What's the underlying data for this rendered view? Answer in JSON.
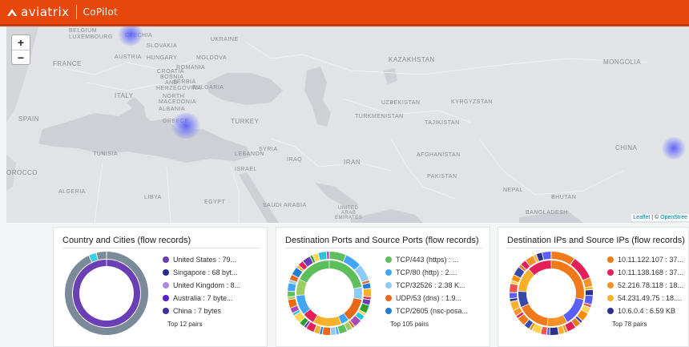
{
  "header": {
    "brand": "aviatrix",
    "product": "CoPilot",
    "logo_icon": "aviatrix-chevron-icon",
    "bg_color": "#e8470c"
  },
  "map": {
    "zoom_in": "+",
    "zoom_out": "−",
    "attribution_leaflet": "Leaflet",
    "attribution_sep": " | © ",
    "attribution_osm": "OpenStree",
    "labels": {
      "luxembourg": "LUXEMBOURG",
      "belgium": "BELGIUM",
      "czechia": "CZECHIA",
      "ukraine": "UKRAINE",
      "slovakia": "SLOVAKIA",
      "austria": "AUSTRIA",
      "hungary": "HUNGARY",
      "moldova": "MOLDOVA",
      "france": "FRANCE",
      "croatia": "CROATIA",
      "bosnia": "BOSNIA",
      "herzegovina": "AND",
      "herzegovina2": "HERZEGOVINA",
      "romania": "ROMANIA",
      "serbia": "SERBIA",
      "bulgaria": "BULGARIA",
      "italy": "ITALY",
      "north_macedonia": "NORTH",
      "north_macedonia2": "MACEDONIA",
      "albania": "ALBANIA",
      "spain": "SPAIN",
      "greece": "GREECE",
      "turkey": "TURKEY",
      "kazakhstan": "KAZAKHSTAN",
      "uzbekistan": "UZBEKISTAN",
      "kyrgyzstan": "KYRGYZSTAN",
      "turkmenistan": "TURKMENISTAN",
      "tajikistan": "TAJIKISTAN",
      "mongolia": "MONGOLIA",
      "tunisia": "TUNISIA",
      "syria": "SYRIA",
      "lebanon": "LEBANON",
      "iraq": "IRAQ",
      "iran": "IRAN",
      "afghanistan": "AFGHANISTAN",
      "china": "CHINA",
      "morocco": "OROCCO",
      "israel": "ISRAEL",
      "pakistan": "PAKISTAN",
      "algeria": "ALGERIA",
      "libya": "LIBYA",
      "egypt": "EGYPT",
      "saudi_arabia": "SAUDI ARABIA",
      "nepal": "NEPAL",
      "bhutan": "BHUTAN",
      "bangladesh": "BANGLADESH",
      "uae": "UNITED",
      "uae2": "ARAB",
      "uae3": "EMIRATES"
    },
    "heat_color": "#5a5ff5"
  },
  "cards": [
    {
      "title": "Country and Cities (flow records)",
      "top_label": "Top 12 pairs",
      "legend": [
        {
          "label": "United States : 79...",
          "color": "#6a3fb5"
        },
        {
          "label": "Singapore : 68 byt...",
          "color": "#2e2a8c"
        },
        {
          "label": "United Kingdom : 8...",
          "color": "#a98ae0"
        },
        {
          "label": "Australia : 7 byte...",
          "color": "#5a1fd0"
        },
        {
          "label": "China : 7 bytes",
          "color": "#3c2f9e"
        }
      ]
    },
    {
      "title": "Destination Ports and Source Ports (flow records)",
      "top_label": "Top 105 pairs",
      "legend": [
        {
          "label": "TCP/443 (https) : ...",
          "color": "#5cbf5c"
        },
        {
          "label": "TCP/80 (http) : 2....",
          "color": "#42a5f5"
        },
        {
          "label": "TCP/32526 : 2.38 K...",
          "color": "#8ecbf7"
        },
        {
          "label": "UDP/53 (dns) : 1.9...",
          "color": "#e8681a"
        },
        {
          "label": "TCP/2605 (nsc-posa...",
          "color": "#1e7ed8"
        }
      ]
    },
    {
      "title": "Destination IPs and Source IPs (flow records)",
      "top_label": "Top 78 pairs",
      "legend": [
        {
          "label": "10.11.122.107 : 37...",
          "color": "#f07a1a"
        },
        {
          "label": "10.11.138.168 : 37...",
          "color": "#e3205a"
        },
        {
          "label": "52.216.78.118 : 18...",
          "color": "#f5922a"
        },
        {
          "label": "54.231.49.75 : 18....",
          "color": "#f6b02a"
        },
        {
          "label": "10.6.0.4 : 6.59 KB",
          "color": "#2c3190"
        }
      ]
    }
  ],
  "chart_data": [
    {
      "type": "pie",
      "title": "Country and Cities (flow records)",
      "categories": [
        "United States",
        "Singapore",
        "United Kingdom",
        "Australia",
        "China"
      ],
      "value_labels": [
        "79...",
        "68 byt...",
        "8...",
        "7 byte...",
        "7 bytes"
      ]
    },
    {
      "type": "pie",
      "title": "Destination Ports and Source Ports (flow records)",
      "categories": [
        "TCP/443 (https)",
        "TCP/80 (http)",
        "TCP/32526",
        "UDP/53 (dns)",
        "TCP/2605 (nsc-posa..."
      ],
      "value_labels": [
        "...",
        "2....",
        "2.38 K...",
        "1.9...",
        ""
      ]
    },
    {
      "type": "pie",
      "title": "Destination IPs and Source IPs (flow records)",
      "categories": [
        "10.11.122.107",
        "10.11.138.168",
        "52.216.78.118",
        "54.231.49.75",
        "10.6.0.4"
      ],
      "value_labels": [
        "37...",
        "37...",
        "18...",
        "18....",
        "6.59 KB"
      ]
    }
  ]
}
